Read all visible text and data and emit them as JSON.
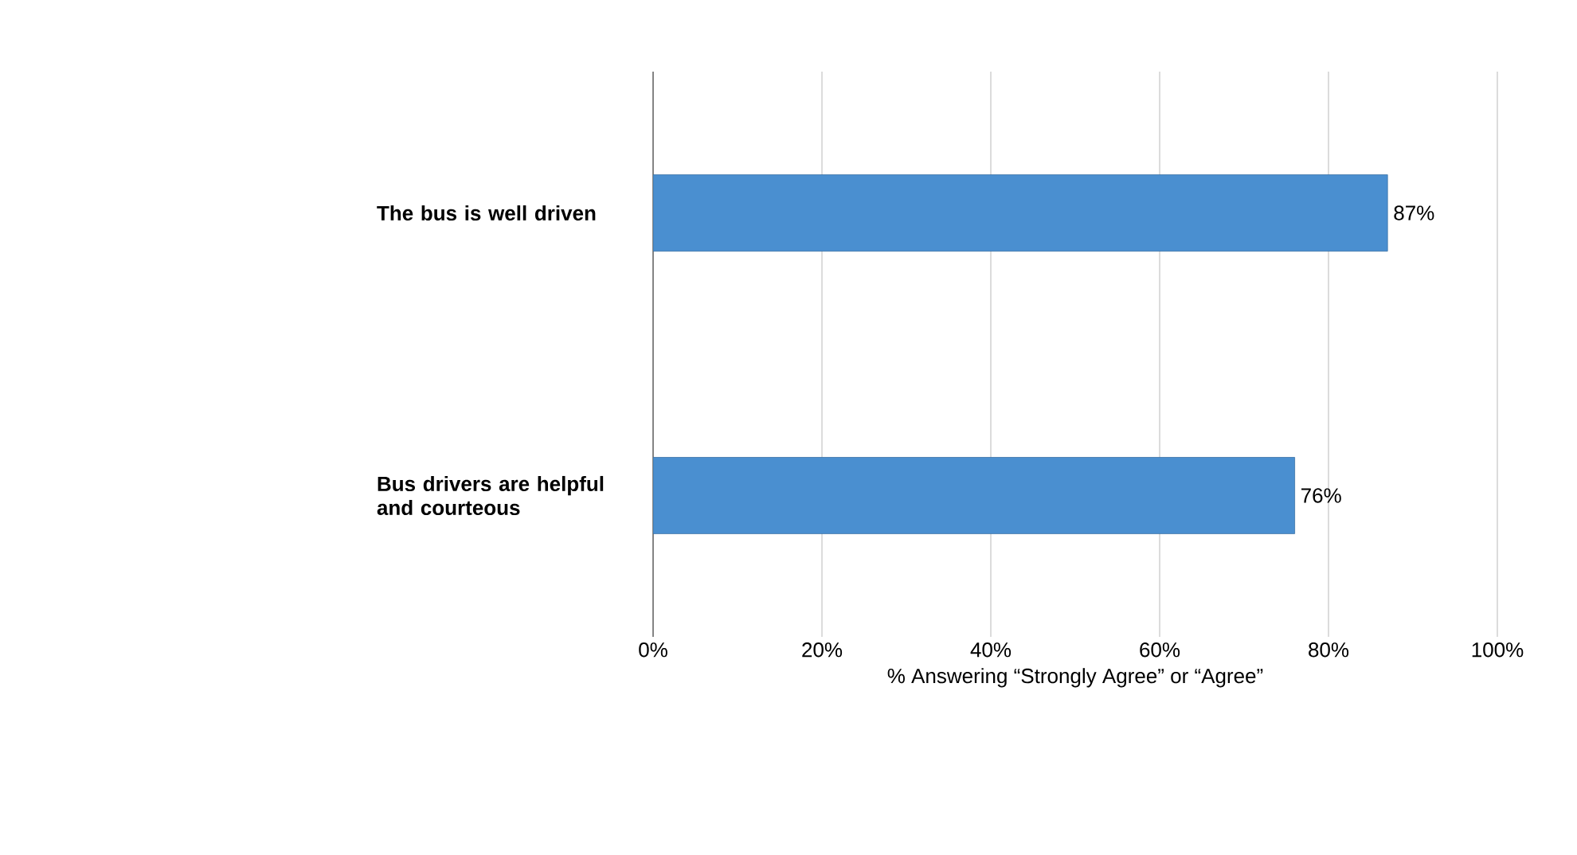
{
  "chart_data": {
    "type": "bar",
    "orientation": "horizontal",
    "categories": [
      "The bus is well driven",
      "Bus drivers are helpful and courteous"
    ],
    "values": [
      87,
      76
    ],
    "color": "#4a8fd0",
    "value_labels": [
      "87%",
      "76%"
    ],
    "xlabel": "% Answering “Strongly Agree” or “Agree”",
    "xlim": [
      0,
      100
    ],
    "xticks": [
      {
        "value": 0,
        "label": "0%"
      },
      {
        "value": 20,
        "label": "20%"
      },
      {
        "value": 40,
        "label": "40%"
      },
      {
        "value": 60,
        "label": "60%"
      },
      {
        "value": 80,
        "label": "80%"
      },
      {
        "value": 100,
        "label": "100%"
      }
    ],
    "grid": "x"
  }
}
